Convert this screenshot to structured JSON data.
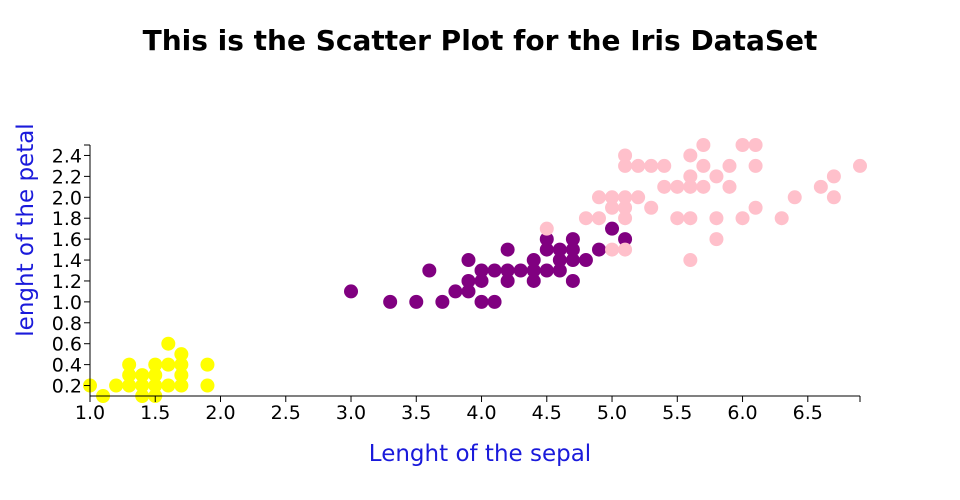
{
  "chart_data": {
    "type": "scatter",
    "title": "This is the Scatter Plot for the Iris DataSet",
    "xlabel": "Lenght of the sepal",
    "ylabel": "lenght of the petal",
    "xlim": [
      1.0,
      6.9
    ],
    "ylim": [
      0.1,
      2.5
    ],
    "xticks": [
      "1.0",
      "1.5",
      "2.0",
      "2.5",
      "3.0",
      "3.5",
      "4.0",
      "4.5",
      "5.0",
      "5.5",
      "6.0",
      "6.5"
    ],
    "yticks": [
      "0.2",
      "0.4",
      "0.6",
      "0.8",
      "1.0",
      "1.2",
      "1.4",
      "1.6",
      "1.8",
      "2.0",
      "2.2",
      "2.4"
    ],
    "grid": false,
    "series": [
      {
        "color": "#ffff00",
        "points": [
          [
            1.0,
            0.2
          ],
          [
            1.1,
            0.1
          ],
          [
            1.2,
            0.2
          ],
          [
            1.3,
            0.2
          ],
          [
            1.3,
            0.3
          ],
          [
            1.3,
            0.4
          ],
          [
            1.4,
            0.1
          ],
          [
            1.4,
            0.2
          ],
          [
            1.4,
            0.3
          ],
          [
            1.5,
            0.1
          ],
          [
            1.5,
            0.2
          ],
          [
            1.5,
            0.3
          ],
          [
            1.5,
            0.4
          ],
          [
            1.6,
            0.2
          ],
          [
            1.6,
            0.4
          ],
          [
            1.6,
            0.6
          ],
          [
            1.7,
            0.2
          ],
          [
            1.7,
            0.3
          ],
          [
            1.7,
            0.4
          ],
          [
            1.7,
            0.5
          ],
          [
            1.9,
            0.2
          ],
          [
            1.9,
            0.4
          ]
        ]
      },
      {
        "color": "#800080",
        "points": [
          [
            3.0,
            1.1
          ],
          [
            3.3,
            1.0
          ],
          [
            3.5,
            1.0
          ],
          [
            3.6,
            1.3
          ],
          [
            3.7,
            1.0
          ],
          [
            3.8,
            1.1
          ],
          [
            3.9,
            1.1
          ],
          [
            3.9,
            1.2
          ],
          [
            3.9,
            1.4
          ],
          [
            4.0,
            1.0
          ],
          [
            4.0,
            1.2
          ],
          [
            4.0,
            1.3
          ],
          [
            4.1,
            1.0
          ],
          [
            4.1,
            1.3
          ],
          [
            4.2,
            1.2
          ],
          [
            4.2,
            1.3
          ],
          [
            4.2,
            1.5
          ],
          [
            4.3,
            1.3
          ],
          [
            4.4,
            1.2
          ],
          [
            4.4,
            1.3
          ],
          [
            4.4,
            1.4
          ],
          [
            4.5,
            1.3
          ],
          [
            4.5,
            1.5
          ],
          [
            4.5,
            1.6
          ],
          [
            4.6,
            1.3
          ],
          [
            4.6,
            1.4
          ],
          [
            4.6,
            1.5
          ],
          [
            4.7,
            1.2
          ],
          [
            4.7,
            1.4
          ],
          [
            4.7,
            1.5
          ],
          [
            4.7,
            1.6
          ],
          [
            4.8,
            1.4
          ],
          [
            4.9,
            1.5
          ],
          [
            5.0,
            1.7
          ],
          [
            5.1,
            1.6
          ]
        ]
      },
      {
        "color": "#ffc0cb",
        "points": [
          [
            4.5,
            1.7
          ],
          [
            4.8,
            1.8
          ],
          [
            4.9,
            1.8
          ],
          [
            4.9,
            2.0
          ],
          [
            5.0,
            1.5
          ],
          [
            5.0,
            1.9
          ],
          [
            5.0,
            2.0
          ],
          [
            5.1,
            1.5
          ],
          [
            5.1,
            1.8
          ],
          [
            5.1,
            1.9
          ],
          [
            5.1,
            2.0
          ],
          [
            5.1,
            2.3
          ],
          [
            5.1,
            2.4
          ],
          [
            5.2,
            2.0
          ],
          [
            5.2,
            2.3
          ],
          [
            5.3,
            1.9
          ],
          [
            5.3,
            2.3
          ],
          [
            5.4,
            2.1
          ],
          [
            5.4,
            2.3
          ],
          [
            5.5,
            1.8
          ],
          [
            5.5,
            2.1
          ],
          [
            5.6,
            1.4
          ],
          [
            5.6,
            1.8
          ],
          [
            5.6,
            2.1
          ],
          [
            5.6,
            2.2
          ],
          [
            5.6,
            2.4
          ],
          [
            5.7,
            2.1
          ],
          [
            5.7,
            2.3
          ],
          [
            5.7,
            2.5
          ],
          [
            5.8,
            1.6
          ],
          [
            5.8,
            1.8
          ],
          [
            5.8,
            2.2
          ],
          [
            5.9,
            2.1
          ],
          [
            5.9,
            2.3
          ],
          [
            6.0,
            1.8
          ],
          [
            6.0,
            2.5
          ],
          [
            6.1,
            1.9
          ],
          [
            6.1,
            2.3
          ],
          [
            6.1,
            2.5
          ],
          [
            6.3,
            1.8
          ],
          [
            6.4,
            2.0
          ],
          [
            6.6,
            2.1
          ],
          [
            6.7,
            2.0
          ],
          [
            6.7,
            2.2
          ],
          [
            6.9,
            2.3
          ]
        ]
      }
    ]
  }
}
